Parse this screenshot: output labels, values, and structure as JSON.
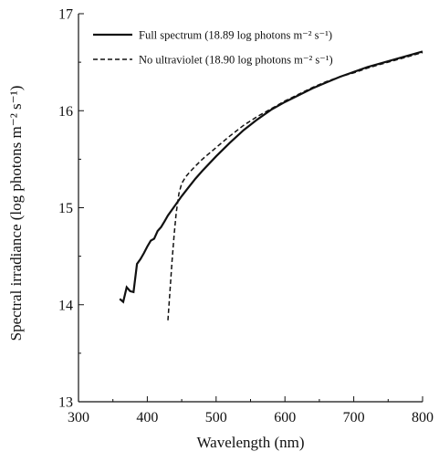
{
  "chart_data": {
    "type": "line",
    "xlabel": "Wavelength (nm)",
    "ylabel": "Spectral irradiance (log photons m⁻² s⁻¹)",
    "xlim": [
      300,
      800
    ],
    "ylim": [
      13,
      17
    ],
    "xticks": [
      300,
      400,
      500,
      600,
      700,
      800
    ],
    "yticks": [
      13,
      14,
      15,
      16,
      17
    ],
    "grid": false,
    "legend_position": "top-left",
    "series": [
      {
        "name": "Full spectrum (18.89 log photons m⁻² s⁻¹)",
        "line_style": "solid",
        "color": "#111111",
        "x": [
          360,
          365,
          370,
          375,
          380,
          385,
          390,
          395,
          400,
          405,
          410,
          415,
          420,
          425,
          430,
          440,
          450,
          460,
          470,
          480,
          500,
          520,
          540,
          560,
          580,
          600,
          620,
          640,
          660,
          680,
          700,
          720,
          740,
          760,
          780,
          800
        ],
        "y": [
          14.06,
          14.03,
          14.18,
          14.14,
          14.13,
          14.42,
          14.47,
          14.53,
          14.6,
          14.66,
          14.68,
          14.76,
          14.8,
          14.86,
          14.92,
          15.02,
          15.12,
          15.21,
          15.3,
          15.38,
          15.53,
          15.67,
          15.8,
          15.91,
          16.01,
          16.09,
          16.16,
          16.23,
          16.29,
          16.35,
          16.4,
          16.45,
          16.49,
          16.53,
          16.57,
          16.61
        ]
      },
      {
        "name": "No ultraviolet (18.90 log photons m⁻² s⁻¹)",
        "line_style": "dashed",
        "color": "#111111",
        "x": [
          430,
          433,
          436,
          439,
          442,
          446,
          450,
          456,
          462,
          470,
          480,
          500,
          520,
          540,
          560,
          580,
          600,
          620,
          640,
          660,
          680,
          700,
          720,
          740,
          760,
          780,
          800
        ],
        "y": [
          13.84,
          14.15,
          14.45,
          14.72,
          14.95,
          15.15,
          15.25,
          15.32,
          15.37,
          15.43,
          15.5,
          15.62,
          15.74,
          15.85,
          15.94,
          16.02,
          16.1,
          16.17,
          16.24,
          16.3,
          16.35,
          16.39,
          16.44,
          16.48,
          16.52,
          16.56,
          16.6
        ]
      }
    ]
  }
}
